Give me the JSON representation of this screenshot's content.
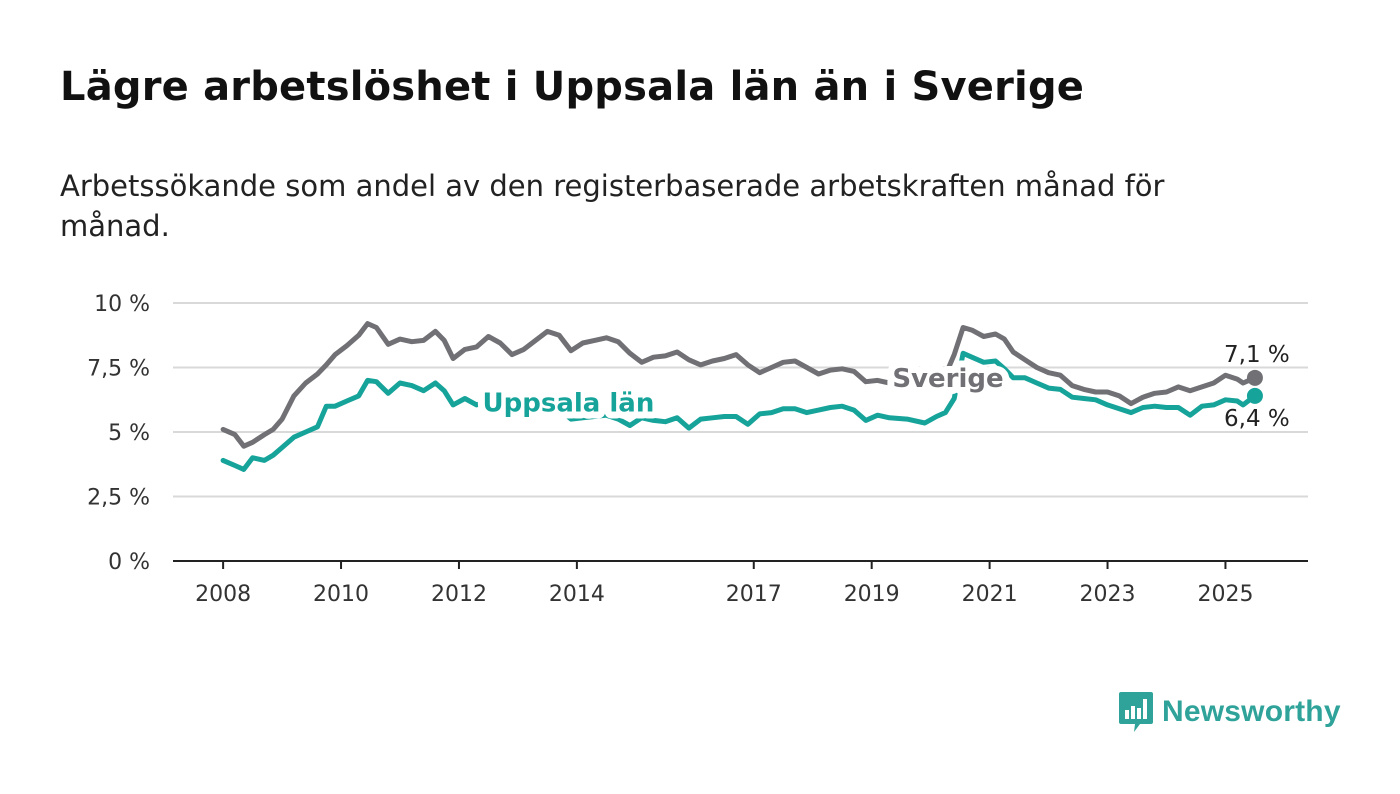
{
  "title": "Lägre arbetslöshet i Uppsala län än i Sverige",
  "subtitle": "Arbetssökande som andel av den registerbaserade arbetskraften månad för månad.",
  "brand": {
    "name": "Newsworthy",
    "color": "#2fa39a",
    "icon": "bar-chart-bubble-icon"
  },
  "chart_data": {
    "type": "line",
    "x_ticks": [
      "2008",
      "2010",
      "2012",
      "2014",
      "2017",
      "2019",
      "2021",
      "2023",
      "2025"
    ],
    "x_tick_values": [
      2008,
      2010,
      2012,
      2014,
      2017,
      2019,
      2021,
      2023,
      2025
    ],
    "xlim": [
      2007.15,
      2026.4
    ],
    "ylim": [
      0,
      10
    ],
    "y_ticks": [
      0,
      2.5,
      5,
      7.5,
      10
    ],
    "y_tick_labels": [
      "0 %",
      "2,5 %",
      "5 %",
      "7,5 %",
      "10 %"
    ],
    "grid": true,
    "series": [
      {
        "name": "Sverige",
        "color": "#707075",
        "end_label": "7,1 %",
        "points": [
          [
            2008.0,
            5.1
          ],
          [
            2008.2,
            4.9
          ],
          [
            2008.35,
            4.45
          ],
          [
            2008.5,
            4.6
          ],
          [
            2008.7,
            4.9
          ],
          [
            2008.85,
            5.1
          ],
          [
            2009.0,
            5.5
          ],
          [
            2009.2,
            6.4
          ],
          [
            2009.4,
            6.9
          ],
          [
            2009.6,
            7.25
          ],
          [
            2009.75,
            7.6
          ],
          [
            2009.9,
            8.0
          ],
          [
            2010.1,
            8.35
          ],
          [
            2010.3,
            8.75
          ],
          [
            2010.45,
            9.2
          ],
          [
            2010.6,
            9.05
          ],
          [
            2010.8,
            8.4
          ],
          [
            2011.0,
            8.6
          ],
          [
            2011.2,
            8.5
          ],
          [
            2011.4,
            8.55
          ],
          [
            2011.6,
            8.9
          ],
          [
            2011.75,
            8.55
          ],
          [
            2011.9,
            7.85
          ],
          [
            2012.1,
            8.2
          ],
          [
            2012.3,
            8.3
          ],
          [
            2012.5,
            8.7
          ],
          [
            2012.7,
            8.45
          ],
          [
            2012.9,
            8.0
          ],
          [
            2013.1,
            8.2
          ],
          [
            2013.3,
            8.55
          ],
          [
            2013.5,
            8.9
          ],
          [
            2013.7,
            8.75
          ],
          [
            2013.9,
            8.15
          ],
          [
            2014.1,
            8.45
          ],
          [
            2014.3,
            8.55
          ],
          [
            2014.5,
            8.65
          ],
          [
            2014.7,
            8.5
          ],
          [
            2014.9,
            8.05
          ],
          [
            2015.1,
            7.7
          ],
          [
            2015.3,
            7.9
          ],
          [
            2015.5,
            7.95
          ],
          [
            2015.7,
            8.1
          ],
          [
            2015.9,
            7.8
          ],
          [
            2016.1,
            7.6
          ],
          [
            2016.3,
            7.75
          ],
          [
            2016.5,
            7.85
          ],
          [
            2016.7,
            8.0
          ],
          [
            2016.9,
            7.6
          ],
          [
            2017.1,
            7.3
          ],
          [
            2017.3,
            7.5
          ],
          [
            2017.5,
            7.7
          ],
          [
            2017.7,
            7.75
          ],
          [
            2017.9,
            7.5
          ],
          [
            2018.1,
            7.25
          ],
          [
            2018.3,
            7.4
          ],
          [
            2018.5,
            7.45
          ],
          [
            2018.7,
            7.35
          ],
          [
            2018.9,
            6.95
          ],
          [
            2019.1,
            7.0
          ],
          [
            2019.3,
            6.9
          ],
          [
            2019.6,
            6.8
          ],
          [
            2019.9,
            6.7
          ],
          [
            2020.1,
            6.8
          ],
          [
            2020.25,
            7.2
          ],
          [
            2020.4,
            8.0
          ],
          [
            2020.55,
            9.05
          ],
          [
            2020.7,
            8.95
          ],
          [
            2020.9,
            8.7
          ],
          [
            2021.1,
            8.8
          ],
          [
            2021.25,
            8.6
          ],
          [
            2021.4,
            8.1
          ],
          [
            2021.6,
            7.8
          ],
          [
            2021.8,
            7.5
          ],
          [
            2022.0,
            7.3
          ],
          [
            2022.2,
            7.2
          ],
          [
            2022.4,
            6.8
          ],
          [
            2022.6,
            6.65
          ],
          [
            2022.8,
            6.55
          ],
          [
            2023.0,
            6.55
          ],
          [
            2023.2,
            6.4
          ],
          [
            2023.4,
            6.1
          ],
          [
            2023.6,
            6.35
          ],
          [
            2023.8,
            6.5
          ],
          [
            2024.0,
            6.55
          ],
          [
            2024.2,
            6.75
          ],
          [
            2024.4,
            6.6
          ],
          [
            2024.6,
            6.75
          ],
          [
            2024.8,
            6.9
          ],
          [
            2025.0,
            7.2
          ],
          [
            2025.2,
            7.05
          ],
          [
            2025.3,
            6.9
          ],
          [
            2025.5,
            7.1
          ]
        ]
      },
      {
        "name": "Uppsala län",
        "color": "#16a39a",
        "end_label": "6,4 %",
        "points": [
          [
            2008.0,
            3.9
          ],
          [
            2008.2,
            3.7
          ],
          [
            2008.35,
            3.55
          ],
          [
            2008.5,
            4.0
          ],
          [
            2008.7,
            3.9
          ],
          [
            2008.85,
            4.1
          ],
          [
            2009.0,
            4.4
          ],
          [
            2009.2,
            4.8
          ],
          [
            2009.4,
            5.0
          ],
          [
            2009.6,
            5.2
          ],
          [
            2009.75,
            6.0
          ],
          [
            2009.9,
            6.0
          ],
          [
            2010.1,
            6.2
          ],
          [
            2010.3,
            6.4
          ],
          [
            2010.45,
            7.0
          ],
          [
            2010.6,
            6.95
          ],
          [
            2010.8,
            6.5
          ],
          [
            2011.0,
            6.9
          ],
          [
            2011.2,
            6.8
          ],
          [
            2011.4,
            6.6
          ],
          [
            2011.6,
            6.9
          ],
          [
            2011.75,
            6.6
          ],
          [
            2011.9,
            6.05
          ],
          [
            2012.1,
            6.3
          ],
          [
            2012.3,
            6.05
          ],
          [
            2012.5,
            6.2
          ],
          [
            2012.7,
            6.1
          ],
          [
            2012.9,
            5.75
          ],
          [
            2013.1,
            6.0
          ],
          [
            2013.3,
            6.05
          ],
          [
            2013.5,
            6.1
          ],
          [
            2013.7,
            5.9
          ],
          [
            2013.9,
            5.5
          ],
          [
            2014.1,
            5.55
          ],
          [
            2014.3,
            5.6
          ],
          [
            2014.5,
            5.65
          ],
          [
            2014.7,
            5.5
          ],
          [
            2014.9,
            5.25
          ],
          [
            2015.1,
            5.55
          ],
          [
            2015.3,
            5.45
          ],
          [
            2015.5,
            5.4
          ],
          [
            2015.7,
            5.55
          ],
          [
            2015.9,
            5.15
          ],
          [
            2016.1,
            5.5
          ],
          [
            2016.3,
            5.55
          ],
          [
            2016.5,
            5.6
          ],
          [
            2016.7,
            5.6
          ],
          [
            2016.9,
            5.3
          ],
          [
            2017.1,
            5.7
          ],
          [
            2017.3,
            5.75
          ],
          [
            2017.5,
            5.9
          ],
          [
            2017.7,
            5.9
          ],
          [
            2017.9,
            5.75
          ],
          [
            2018.1,
            5.85
          ],
          [
            2018.3,
            5.95
          ],
          [
            2018.5,
            6.0
          ],
          [
            2018.7,
            5.85
          ],
          [
            2018.9,
            5.45
          ],
          [
            2019.1,
            5.65
          ],
          [
            2019.3,
            5.55
          ],
          [
            2019.6,
            5.5
          ],
          [
            2019.9,
            5.35
          ],
          [
            2020.1,
            5.6
          ],
          [
            2020.25,
            5.75
          ],
          [
            2020.4,
            6.3
          ],
          [
            2020.55,
            8.05
          ],
          [
            2020.7,
            7.9
          ],
          [
            2020.9,
            7.7
          ],
          [
            2021.1,
            7.75
          ],
          [
            2021.25,
            7.45
          ],
          [
            2021.4,
            7.1
          ],
          [
            2021.6,
            7.1
          ],
          [
            2021.8,
            6.9
          ],
          [
            2022.0,
            6.7
          ],
          [
            2022.2,
            6.65
          ],
          [
            2022.4,
            6.35
          ],
          [
            2022.6,
            6.3
          ],
          [
            2022.8,
            6.25
          ],
          [
            2023.0,
            6.05
          ],
          [
            2023.2,
            5.9
          ],
          [
            2023.4,
            5.75
          ],
          [
            2023.6,
            5.95
          ],
          [
            2023.8,
            6.0
          ],
          [
            2024.0,
            5.95
          ],
          [
            2024.2,
            5.95
          ],
          [
            2024.4,
            5.65
          ],
          [
            2024.6,
            6.0
          ],
          [
            2024.8,
            6.05
          ],
          [
            2025.0,
            6.25
          ],
          [
            2025.2,
            6.2
          ],
          [
            2025.3,
            6.05
          ],
          [
            2025.5,
            6.4
          ]
        ]
      }
    ]
  }
}
